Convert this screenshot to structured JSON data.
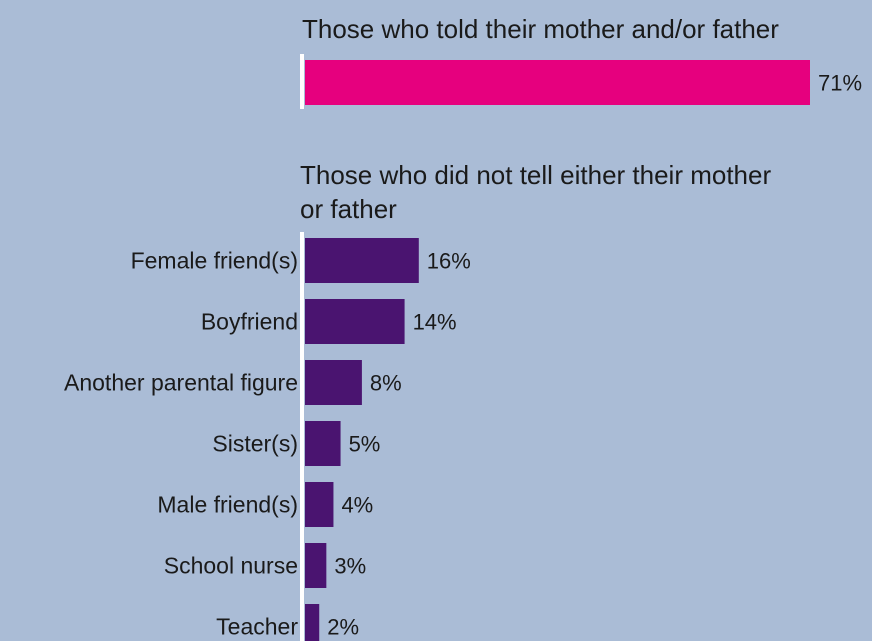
{
  "chart_data": {
    "type": "bar",
    "orientation": "horizontal",
    "unit": "%",
    "xlim": [
      0,
      71
    ],
    "grid": false,
    "groups": [
      {
        "heading": [
          "Those who told their mother and/or father"
        ],
        "color": "#e6007e",
        "categories": [
          ""
        ],
        "values": [
          71
        ],
        "labels": [
          "71%"
        ]
      },
      {
        "heading": [
          "Those who did not tell either their mother",
          "or father"
        ],
        "color": "#4a1470",
        "categories": [
          "Female friend(s)",
          "Boyfriend",
          "Another parental figure",
          "Sister(s)",
          "Male friend(s)",
          "School nurse",
          "Teacher"
        ],
        "values": [
          16,
          14,
          8,
          5,
          4,
          3,
          2
        ],
        "labels": [
          "16%",
          "14%",
          "8%",
          "5%",
          "4%",
          "3%",
          "2%"
        ]
      }
    ]
  },
  "colors": {
    "background": "#aabcd6",
    "axis": "#ffffff",
    "text": "#1a1a1a"
  }
}
